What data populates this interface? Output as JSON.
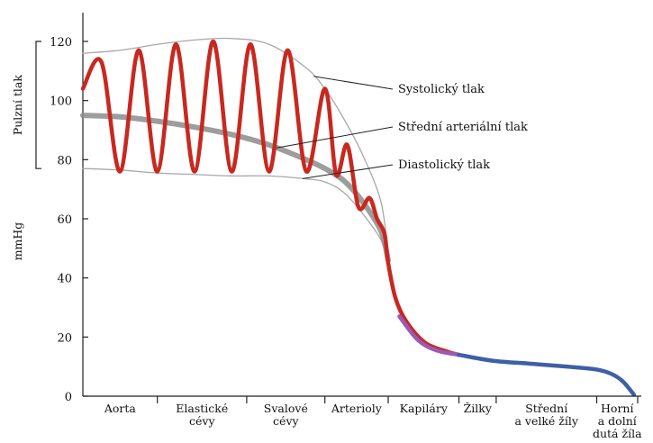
{
  "chart_data": {
    "type": "line",
    "ylabel": "mmHg",
    "pulse_label": "Pulzní tlak",
    "pulse_range": [
      77,
      120
    ],
    "ylim": [
      0,
      130
    ],
    "yticks": [
      0,
      20,
      40,
      60,
      80,
      100,
      120
    ],
    "xlim": [
      0,
      10
    ],
    "segments": [
      {
        "label": "Aorta",
        "from": 0,
        "to": 1
      },
      {
        "label": "Elastické\ncévy",
        "from": 1,
        "to": 2.2
      },
      {
        "label": "Svalové\ncévy",
        "from": 2.2,
        "to": 3.25
      },
      {
        "label": "Arterioly",
        "from": 3.25,
        "to": 4.1
      },
      {
        "label": "Kapiláry",
        "from": 4.1,
        "to": 5.05
      },
      {
        "label": "Žilky",
        "from": 5.05,
        "to": 5.55
      },
      {
        "label": "Střední\na velké žíly",
        "from": 5.55,
        "to": 6.9
      },
      {
        "label": "Horní\na dolní\ndutá žíla",
        "from": 6.9,
        "to": 7.45
      }
    ],
    "annotations": [
      {
        "label": "Systolický tlak",
        "target": "systolic",
        "at_x": 3.1
      },
      {
        "label": "Střední arteriální tlak",
        "target": "mean",
        "at_x": 2.6
      },
      {
        "label": "Diastolický tlak",
        "target": "diastolic",
        "at_x": 2.95
      }
    ],
    "series": [
      {
        "key": "systolic",
        "color": "#a8a8a8",
        "x": [
          0,
          0.5,
          1,
          1.5,
          2,
          2.5,
          3,
          3.25,
          3.5,
          3.75,
          4.0,
          4.1
        ],
        "y": [
          116,
          117,
          119,
          120.5,
          121,
          119,
          111,
          104,
          94,
          82,
          66,
          48
        ]
      },
      {
        "key": "mean",
        "color": "#8c8c8c",
        "x": [
          0,
          0.5,
          1,
          1.5,
          2,
          2.5,
          3,
          3.25,
          3.5,
          3.75,
          4.0,
          4.1
        ],
        "y": [
          95,
          94.5,
          93,
          91,
          88.5,
          85,
          80,
          77,
          73,
          66,
          56,
          46
        ]
      },
      {
        "key": "diastolic",
        "color": "#a8a8a8",
        "x": [
          0,
          0.5,
          1,
          1.5,
          2,
          2.5,
          3,
          3.25,
          3.5,
          3.75,
          4.0,
          4.1
        ],
        "y": [
          77,
          76.5,
          75.5,
          75,
          74.5,
          74.5,
          73.5,
          72.5,
          69,
          62,
          53,
          45
        ]
      },
      {
        "key": "pressure",
        "name": "",
        "color": "#c8281f",
        "x": [
          0,
          0.25,
          0.5,
          0.75,
          1,
          1.25,
          1.5,
          1.75,
          2,
          2.25,
          2.5,
          2.75,
          3,
          3.25,
          3.4,
          3.55,
          3.7,
          3.85,
          3.95,
          4.05,
          4.1,
          4.2,
          4.35,
          4.6,
          4.9,
          5.05
        ],
        "y": [
          104,
          113,
          76,
          117,
          76,
          119,
          76,
          120,
          76,
          119,
          76,
          117,
          76,
          104,
          75,
          85,
          64,
          67,
          60,
          55,
          45,
          33,
          25,
          18,
          15,
          14
        ]
      },
      {
        "key": "capillary",
        "color": "#9b59b6",
        "x": [
          4.25,
          4.5,
          4.75,
          5.05
        ],
        "y": [
          27,
          19,
          15.5,
          14
        ]
      },
      {
        "key": "venous",
        "color": "#3f5fa6",
        "x": [
          5.05,
          5.5,
          6.0,
          6.5,
          6.9,
          7.1,
          7.25,
          7.4
        ],
        "y": [
          14,
          12,
          11,
          10,
          9,
          7.5,
          5,
          0.5
        ]
      }
    ]
  }
}
